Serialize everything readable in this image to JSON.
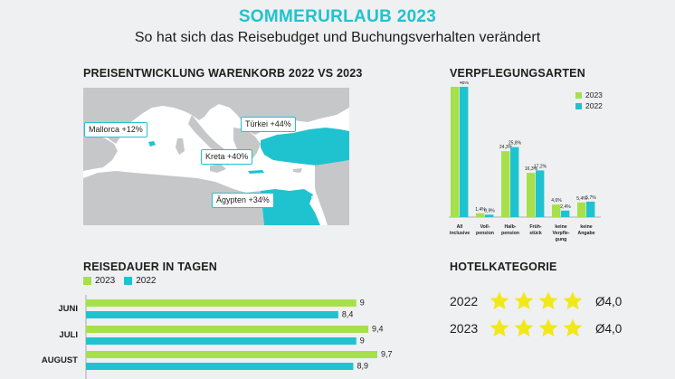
{
  "header": {
    "title": "SOMMERURLAUB 2023",
    "subtitle": "So hat sich das Reisebudget und Buchungsverhalten verändert"
  },
  "colors": {
    "y2023": "#a6e04a",
    "y2022": "#1fc3cf",
    "highlight": "#1fc3cf",
    "land": "#c6c7c8",
    "sea": "#ffffff",
    "star": "#f1e81a"
  },
  "map": {
    "title": "PREISENTWICKLUNG WARENKORB 2022 VS 2023",
    "labels": {
      "mallorca": "Mallorca +12%",
      "tuerkei": "Türkei +44%",
      "kreta": "Kreta +40%",
      "aegypten": "Ägypten +34%"
    }
  },
  "meals": {
    "title": "VERPFLEGUNGSARTEN",
    "legend": [
      "2023",
      "2022"
    ]
  },
  "duration": {
    "title": "REISEDAUER IN TAGEN",
    "legend": [
      "2023",
      "2022"
    ]
  },
  "hotel": {
    "title": "HOTELKATEGORIE",
    "rows": [
      {
        "year": "2022",
        "stars": 4,
        "avg": "Ø4,0"
      },
      {
        "year": "2023",
        "stars": 4,
        "avg": "Ø4,0"
      }
    ]
  },
  "chart_data": [
    {
      "type": "bar",
      "title": "VERPFLEGUNGSARTEN",
      "categories": [
        [
          "All",
          "inclusive"
        ],
        [
          "Voll-",
          "pension"
        ],
        [
          "Halb-",
          "pension"
        ],
        [
          "Früh-",
          "stück"
        ],
        [
          "keine",
          "Verpfle-",
          "gung"
        ],
        [
          "keine",
          "Angabe"
        ]
      ],
      "series": [
        {
          "name": "2023",
          "values": [
            48,
            1.4,
            24.3,
            16.3,
            4.6,
            5.4
          ],
          "labels": [
            "",
            "1,4%",
            "24,3%",
            "16,3%",
            "4,6%",
            "5,4%"
          ]
        },
        {
          "name": "2022",
          "values": [
            48,
            0.9,
            25.8,
            17.2,
            2.4,
            5.7
          ],
          "labels": [
            "48%",
            "0,9%",
            "25,8%",
            "17,2%",
            "2,4%",
            "5,7%"
          ]
        }
      ],
      "ylim": [
        0,
        48
      ]
    },
    {
      "type": "bar",
      "orientation": "horizontal",
      "title": "REISEDAUER IN TAGEN",
      "categories": [
        "JUNI",
        "JULI",
        "AUGUST"
      ],
      "series": [
        {
          "name": "2023",
          "values": [
            9,
            9.4,
            9.7
          ],
          "labels": [
            "9",
            "9,4",
            "9,7"
          ]
        },
        {
          "name": "2022",
          "values": [
            8.4,
            9,
            8.9
          ],
          "labels": [
            "8,4",
            "9",
            "8,9"
          ]
        }
      ]
    }
  ]
}
